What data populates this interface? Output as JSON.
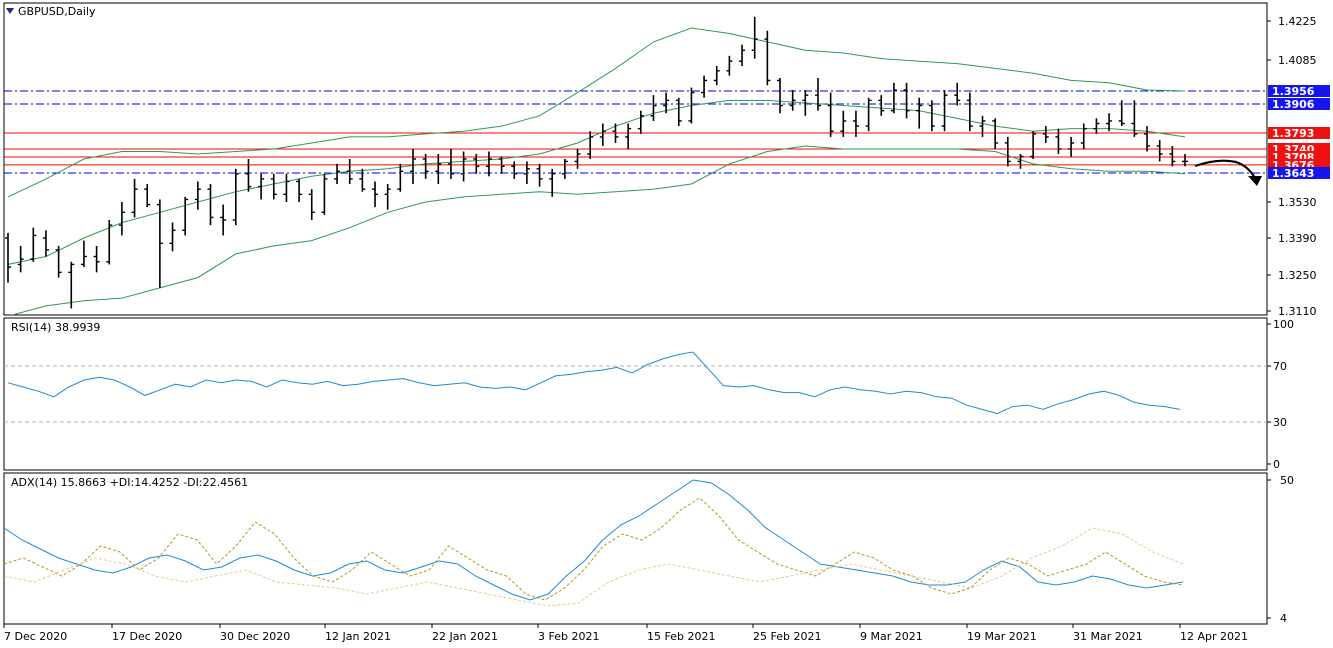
{
  "window": {
    "symbol_label": "GBPUSD,Daily"
  },
  "colors": {
    "frame": "#000000",
    "bb": "#2f9a52",
    "resistance": "#ff0000",
    "support": "#0000cc",
    "level_blue_bg": "#1515ee",
    "level_red_bg": "#ee1111",
    "rsi": "#1f8ad0",
    "adx": "#1f8ad0",
    "plus_di": "#b09a20",
    "minus_di": "#e8c890",
    "guide": "#b0b0b0",
    "arrow": "#000000"
  },
  "icons": {
    "menu": "triangle-down-icon",
    "forecast": "curved-arrow-down-icon"
  },
  "chart_data": [
    {
      "type": "candlestick",
      "title": "GBPUSD,Daily",
      "ylim": [
        1.3065,
        1.4275
      ],
      "y_ticks": [
        "1.4225",
        "1.4085",
        "1.3530",
        "1.3390",
        "1.3250",
        "1.3110"
      ],
      "x_ticks": [
        "7 Dec 2020",
        "17 Dec 2020",
        "30 Dec 2020",
        "12 Jan 2021",
        "22 Jan 2021",
        "3 Feb 2021",
        "15 Feb 2021",
        "25 Feb 2021",
        "9 Mar 2021",
        "19 Mar 2021",
        "31 Mar 2021",
        "12 Apr 2021"
      ],
      "horizontal_levels": [
        {
          "value": 1.3956,
          "label": "1.3956",
          "style": "dash-dot",
          "color": "blue"
        },
        {
          "value": 1.3906,
          "label": "1.3906",
          "style": "dash-dot",
          "color": "blue"
        },
        {
          "value": 1.3793,
          "label": "1.3793",
          "style": "solid",
          "color": "red"
        },
        {
          "value": 1.374,
          "label": "1.3740",
          "style": "solid",
          "color": "red"
        },
        {
          "value": 1.3708,
          "label": "1.3708",
          "style": "solid",
          "color": "red"
        },
        {
          "value": 1.3676,
          "label": "1.3676",
          "style": "solid",
          "color": "red"
        },
        {
          "value": 1.3643,
          "label": "1.3643",
          "style": "dash-dot",
          "color": "blue"
        }
      ],
      "ohlc": [
        [
          1.339,
          1.341,
          1.322,
          1.328
        ],
        [
          1.329,
          1.336,
          1.326,
          1.331
        ],
        [
          1.331,
          1.343,
          1.33,
          1.34
        ],
        [
          1.339,
          1.342,
          1.332,
          1.3345
        ],
        [
          1.3345,
          1.336,
          1.324,
          1.326
        ],
        [
          1.326,
          1.33,
          1.312,
          1.329
        ],
        [
          1.329,
          1.338,
          1.328,
          1.332
        ],
        [
          1.332,
          1.336,
          1.326,
          1.33
        ],
        [
          1.33,
          1.346,
          1.329,
          1.344
        ],
        [
          1.344,
          1.353,
          1.34,
          1.349
        ],
        [
          1.349,
          1.362,
          1.347,
          1.358
        ],
        [
          1.358,
          1.36,
          1.351,
          1.352
        ],
        [
          1.352,
          1.354,
          1.32,
          1.337
        ],
        [
          1.337,
          1.345,
          1.334,
          1.342
        ],
        [
          1.342,
          1.355,
          1.34,
          1.354
        ],
        [
          1.354,
          1.361,
          1.35,
          1.358
        ],
        [
          1.358,
          1.36,
          1.344,
          1.347
        ],
        [
          1.347,
          1.352,
          1.34,
          1.346
        ],
        [
          1.346,
          1.366,
          1.344,
          1.364
        ],
        [
          1.364,
          1.37,
          1.357,
          1.359
        ],
        [
          1.359,
          1.364,
          1.354,
          1.362
        ],
        [
          1.362,
          1.364,
          1.354,
          1.356
        ],
        [
          1.356,
          1.364,
          1.353,
          1.361
        ],
        [
          1.361,
          1.362,
          1.353,
          1.356
        ],
        [
          1.356,
          1.358,
          1.346,
          1.349
        ],
        [
          1.349,
          1.364,
          1.348,
          1.362
        ],
        [
          1.362,
          1.368,
          1.36,
          1.365
        ],
        [
          1.365,
          1.37,
          1.36,
          1.362
        ],
        [
          1.362,
          1.366,
          1.357,
          1.358
        ],
        [
          1.358,
          1.361,
          1.351,
          1.356
        ],
        [
          1.356,
          1.36,
          1.35,
          1.358
        ],
        [
          1.358,
          1.368,
          1.357,
          1.365
        ],
        [
          1.365,
          1.374,
          1.36,
          1.37
        ],
        [
          1.37,
          1.372,
          1.362,
          1.365
        ],
        [
          1.365,
          1.372,
          1.36,
          1.368
        ],
        [
          1.368,
          1.374,
          1.362,
          1.364
        ],
        [
          1.364,
          1.373,
          1.361,
          1.37
        ],
        [
          1.37,
          1.372,
          1.364,
          1.367
        ],
        [
          1.367,
          1.373,
          1.363,
          1.37
        ],
        [
          1.37,
          1.371,
          1.364,
          1.367
        ],
        [
          1.367,
          1.369,
          1.362,
          1.364
        ],
        [
          1.364,
          1.369,
          1.36,
          1.366
        ],
        [
          1.366,
          1.368,
          1.359,
          1.362
        ],
        [
          1.362,
          1.366,
          1.355,
          1.364
        ],
        [
          1.364,
          1.37,
          1.362,
          1.369
        ],
        [
          1.369,
          1.374,
          1.366,
          1.372
        ],
        [
          1.372,
          1.38,
          1.37,
          1.378
        ],
        [
          1.378,
          1.383,
          1.375,
          1.38
        ],
        [
          1.38,
          1.383,
          1.376,
          1.378
        ],
        [
          1.378,
          1.383,
          1.374,
          1.381
        ],
        [
          1.381,
          1.388,
          1.379,
          1.386
        ],
        [
          1.386,
          1.394,
          1.384,
          1.39
        ],
        [
          1.39,
          1.395,
          1.387,
          1.392
        ],
        [
          1.392,
          1.393,
          1.382,
          1.384
        ],
        [
          1.384,
          1.397,
          1.383,
          1.395
        ],
        [
          1.395,
          1.402,
          1.393,
          1.4
        ],
        [
          1.4,
          1.406,
          1.398,
          1.404
        ],
        [
          1.404,
          1.41,
          1.402,
          1.408
        ],
        [
          1.408,
          1.414,
          1.406,
          1.412
        ],
        [
          1.412,
          1.424,
          1.409,
          1.416
        ],
        [
          1.416,
          1.419,
          1.398,
          1.4
        ],
        [
          1.4,
          1.401,
          1.387,
          1.39
        ],
        [
          1.39,
          1.396,
          1.388,
          1.392
        ],
        [
          1.392,
          1.396,
          1.386,
          1.394
        ],
        [
          1.394,
          1.401,
          1.388,
          1.39
        ],
        [
          1.39,
          1.395,
          1.378,
          1.38
        ],
        [
          1.38,
          1.388,
          1.378,
          1.384
        ],
        [
          1.384,
          1.388,
          1.378,
          1.382
        ],
        [
          1.382,
          1.393,
          1.38,
          1.392
        ],
        [
          1.392,
          1.394,
          1.386,
          1.388
        ],
        [
          1.388,
          1.399,
          1.387,
          1.396
        ],
        [
          1.396,
          1.399,
          1.385,
          1.388
        ],
        [
          1.388,
          1.393,
          1.381,
          1.39
        ],
        [
          1.39,
          1.392,
          1.38,
          1.382
        ],
        [
          1.382,
          1.396,
          1.38,
          1.394
        ],
        [
          1.394,
          1.399,
          1.39,
          1.392
        ],
        [
          1.392,
          1.395,
          1.38,
          1.382
        ],
        [
          1.382,
          1.386,
          1.378,
          1.384
        ],
        [
          1.384,
          1.385,
          1.374,
          1.376
        ],
        [
          1.376,
          1.378,
          1.367,
          1.369
        ],
        [
          1.369,
          1.372,
          1.366,
          1.371
        ],
        [
          1.371,
          1.38,
          1.37,
          1.379
        ],
        [
          1.379,
          1.382,
          1.376,
          1.378
        ],
        [
          1.378,
          1.381,
          1.372,
          1.374
        ],
        [
          1.374,
          1.378,
          1.371,
          1.376
        ],
        [
          1.376,
          1.383,
          1.374,
          1.381
        ],
        [
          1.381,
          1.385,
          1.379,
          1.383
        ],
        [
          1.383,
          1.387,
          1.38,
          1.384
        ],
        [
          1.384,
          1.392,
          1.382,
          1.383
        ],
        [
          1.383,
          1.392,
          1.378,
          1.379
        ],
        [
          1.379,
          1.382,
          1.373,
          1.375
        ],
        [
          1.375,
          1.377,
          1.369,
          1.372
        ],
        [
          1.372,
          1.375,
          1.367,
          1.369
        ],
        [
          1.369,
          1.372,
          1.367,
          1.369
        ]
      ],
      "series": [
        {
          "name": "BB upper",
          "values": [
            1.355,
            1.362,
            1.37,
            1.373,
            1.373,
            1.372,
            1.373,
            1.374,
            1.376,
            1.378,
            1.378,
            1.379,
            1.38,
            1.382,
            1.386,
            1.395,
            1.405,
            1.415,
            1.42,
            1.418,
            1.415,
            1.412,
            1.411,
            1.409,
            1.408,
            1.407,
            1.405,
            1.403,
            1.4,
            1.399,
            1.396,
            1.3956
          ]
        },
        {
          "name": "BB middle",
          "values": [
            1.329,
            1.332,
            1.339,
            1.345,
            1.349,
            1.353,
            1.357,
            1.36,
            1.363,
            1.365,
            1.366,
            1.368,
            1.369,
            1.37,
            1.372,
            1.376,
            1.382,
            1.387,
            1.39,
            1.392,
            1.392,
            1.391,
            1.39,
            1.389,
            1.388,
            1.385,
            1.382,
            1.38,
            1.381,
            1.381,
            1.38,
            1.378
          ]
        },
        {
          "name": "BB lower",
          "values": [
            1.309,
            1.313,
            1.315,
            1.316,
            1.32,
            1.324,
            1.333,
            1.336,
            1.338,
            1.343,
            1.349,
            1.353,
            1.355,
            1.356,
            1.357,
            1.356,
            1.357,
            1.358,
            1.36,
            1.368,
            1.373,
            1.375,
            1.374,
            1.374,
            1.374,
            1.374,
            1.373,
            1.368,
            1.366,
            1.365,
            1.365,
            1.364
          ]
        }
      ]
    },
    {
      "type": "line",
      "title": "RSI(14) 38.9939",
      "ylim": [
        0,
        100
      ],
      "y_ticks": [
        "100",
        "70",
        "30",
        "0"
      ],
      "levels": [
        70,
        30
      ],
      "series": [
        {
          "name": "RSI(14)",
          "values": [
            58,
            55,
            52,
            48,
            55,
            60,
            62,
            60,
            55,
            49,
            53,
            57,
            55,
            60,
            58,
            60,
            59,
            55,
            60,
            58,
            57,
            59,
            56,
            57,
            59,
            60,
            61,
            58,
            56,
            57,
            58,
            55,
            54,
            55,
            53,
            58,
            63,
            64,
            66,
            67,
            69,
            65,
            71,
            75,
            78,
            80,
            68,
            56,
            55,
            56,
            53,
            51,
            51,
            48,
            53,
            55,
            53,
            52,
            50,
            52,
            51,
            48,
            47,
            42,
            39,
            36,
            41,
            42,
            39,
            43,
            46,
            50,
            52,
            49,
            44,
            42,
            41,
            39
          ]
        }
      ]
    },
    {
      "type": "line",
      "title": "ADX(14) 15.8663 +DI:14.4252 -DI:22.4561",
      "ylim": [
        4,
        50
      ],
      "y_ticks": [
        "50",
        "4"
      ],
      "series": [
        {
          "name": "ADX(14)",
          "values": [
            34,
            30,
            27,
            24,
            22,
            20,
            19,
            21,
            24,
            25,
            23,
            20,
            21,
            24,
            25,
            23,
            20,
            18,
            19,
            22,
            23,
            20,
            19,
            21,
            23,
            22,
            18,
            15,
            12,
            10,
            12,
            18,
            23,
            30,
            35,
            38,
            42,
            46,
            50,
            49,
            45,
            40,
            34,
            30,
            26,
            22,
            21,
            20,
            19,
            18,
            16,
            15,
            15,
            16,
            20,
            23,
            21,
            16,
            15,
            16,
            18,
            17,
            15,
            14,
            15,
            16
          ]
        },
        {
          "name": "+DI",
          "values": [
            22,
            24,
            21,
            18,
            22,
            28,
            26,
            20,
            24,
            32,
            30,
            22,
            28,
            36,
            32,
            24,
            18,
            16,
            20,
            26,
            22,
            18,
            20,
            28,
            24,
            20,
            18,
            12,
            10,
            14,
            20,
            28,
            32,
            30,
            34,
            40,
            44,
            38,
            30,
            26,
            22,
            20,
            18,
            22,
            26,
            24,
            20,
            18,
            14,
            12,
            14,
            20,
            24,
            22,
            18,
            20,
            22,
            26,
            22,
            18,
            16,
            15
          ]
        },
        {
          "name": "-DI",
          "values": [
            18,
            16,
            20,
            24,
            22,
            18,
            16,
            18,
            20,
            16,
            15,
            14,
            12,
            14,
            16,
            14,
            12,
            10,
            8,
            9,
            16,
            20,
            22,
            20,
            18,
            16,
            18,
            20,
            22,
            20,
            18,
            16,
            14,
            18,
            24,
            28,
            34,
            32,
            26,
            22
          ]
        }
      ]
    }
  ]
}
